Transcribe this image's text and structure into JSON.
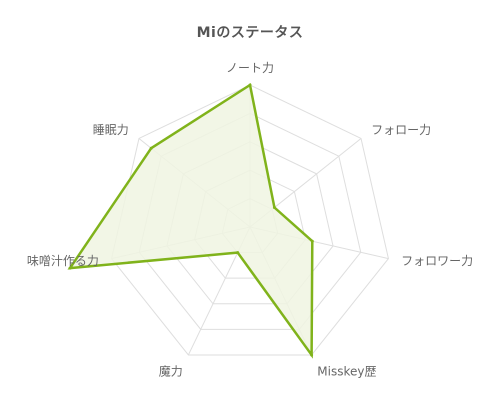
{
  "chart_data": {
    "type": "radar",
    "title": "Miのステータス",
    "categories": [
      "ノート力",
      "フォロー力",
      "フォロワー力",
      "Misskey歴",
      "魔力",
      "味噌汁作る力",
      "睡眠力"
    ],
    "series": [
      {
        "values": [
          100,
          22,
          45,
          100,
          20,
          130,
          89
        ],
        "color": "#80b31b"
      }
    ],
    "rlim": [
      0,
      100
    ],
    "grid_levels": 5,
    "grid": true,
    "colors": {
      "line": "#80b31b",
      "fill": "#f0f5e2",
      "grid": "#dedede",
      "text": "#666666",
      "title": "#555555"
    }
  }
}
